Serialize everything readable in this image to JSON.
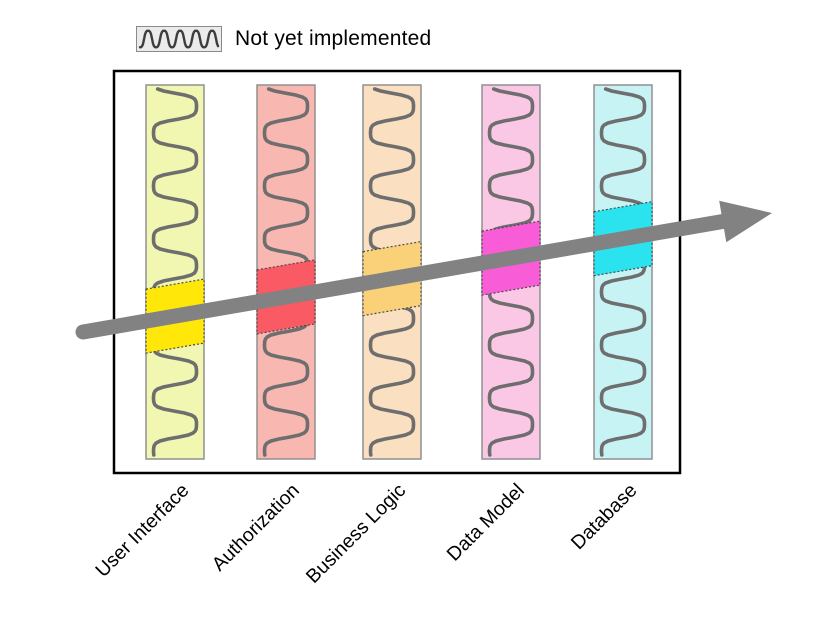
{
  "legend": {
    "label": "Not yet implemented",
    "swatch_fill": "#ebebeb",
    "swatch_border": "#8a8a8a",
    "swatch_wave_color": "#3d3d3d"
  },
  "diagram": {
    "background": "#ffffff",
    "frame_border_color": "#000000",
    "arrow_color": "#828282",
    "wave_color": "#6e6e6e",
    "column_border_color": "#909090",
    "slice_border_color": "#4a4a4a",
    "layers": [
      {
        "label": "User Interface",
        "fill": "#f1f7b0",
        "slice_fill": "#ffe70a"
      },
      {
        "label": "Authorization",
        "fill": "#f9b7b2",
        "slice_fill": "#fa5a64"
      },
      {
        "label": "Business Logic",
        "fill": "#fadfc0",
        "slice_fill": "#fad178"
      },
      {
        "label": "Data Model",
        "fill": "#fac8e5",
        "slice_fill": "#f95cd7"
      },
      {
        "label": "Database",
        "fill": "#c8f3f5",
        "slice_fill": "#2ae3ef"
      }
    ]
  }
}
